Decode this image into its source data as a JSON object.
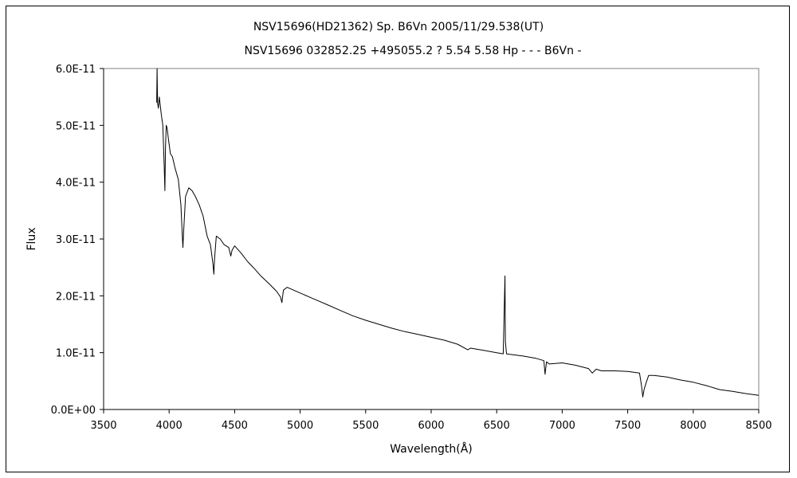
{
  "chart_data": {
    "type": "line",
    "title": "NSV15696(HD21362)    Sp. B6Vn    2005/11/29.538(UT)",
    "subtitle": "NSV15696 032852.25 +495055.2 ? 5.54 5.58 Hp - - - B6Vn -",
    "xlabel": "Wavelength(Å)",
    "ylabel": "Flux",
    "xlim": [
      3500,
      8500
    ],
    "ylim": [
      0,
      6e-11
    ],
    "x_ticks": [
      3500,
      4000,
      4500,
      5000,
      5500,
      6000,
      6500,
      7000,
      7500,
      8000,
      8500
    ],
    "x_tick_labels": [
      "3500",
      "4000",
      "4500",
      "5000",
      "5500",
      "6000",
      "6500",
      "7000",
      "7500",
      "8000",
      "8500"
    ],
    "y_ticks": [
      0,
      1e-11,
      2e-11,
      3e-11,
      4e-11,
      5e-11,
      6e-11
    ],
    "y_tick_labels": [
      "0.0E+00",
      "1.0E-11",
      "2.0E-11",
      "3.0E-11",
      "4.0E-11",
      "5.0E-11",
      "6.0E-11"
    ],
    "grid": false,
    "legend": "none",
    "series": [
      {
        "color": "#000000",
        "x": [
          3905,
          3908,
          3912,
          3918,
          3925,
          3930,
          3940,
          3952,
          3962,
          3968,
          3972,
          3978,
          3985,
          3995,
          4010,
          4025,
          4045,
          4070,
          4090,
          4100,
          4105,
          4110,
          4125,
          4150,
          4175,
          4200,
          4230,
          4260,
          4290,
          4315,
          4335,
          4341,
          4347,
          4360,
          4390,
          4420,
          4455,
          4471,
          4480,
          4500,
          4550,
          4600,
          4650,
          4700,
          4760,
          4820,
          4850,
          4861,
          4872,
          4900,
          4950,
          5000,
          5100,
          5200,
          5300,
          5400,
          5500,
          5600,
          5700,
          5800,
          5900,
          6000,
          6100,
          6200,
          6280,
          6300,
          6400,
          6500,
          6550,
          6563,
          6566,
          6575,
          6600,
          6700,
          6800,
          6860,
          6869,
          6880,
          6900,
          7000,
          7100,
          7200,
          7230,
          7260,
          7300,
          7400,
          7500,
          7590,
          7605,
          7615,
          7625,
          7645,
          7660,
          7700,
          7800,
          7900,
          8000,
          8100,
          8200,
          8300,
          8400,
          8500
        ],
        "values": [
          5.4e-11,
          6e-11,
          5.4e-11,
          5.3e-11,
          5.5e-11,
          5.4e-11,
          5.2e-11,
          5e-11,
          4.3e-11,
          3.85e-11,
          4.6e-11,
          5e-11,
          4.95e-11,
          4.75e-11,
          4.5e-11,
          4.45e-11,
          4.25e-11,
          4.05e-11,
          3.6e-11,
          3.1e-11,
          2.85e-11,
          3.1e-11,
          3.75e-11,
          3.9e-11,
          3.85e-11,
          3.75e-11,
          3.6e-11,
          3.4e-11,
          3.05e-11,
          2.9e-11,
          2.55e-11,
          2.38e-11,
          2.65e-11,
          3.05e-11,
          3e-11,
          2.9e-11,
          2.85e-11,
          2.7e-11,
          2.8e-11,
          2.88e-11,
          2.75e-11,
          2.6e-11,
          2.48e-11,
          2.35e-11,
          2.22e-11,
          2.08e-11,
          1.98e-11,
          1.88e-11,
          2.1e-11,
          2.15e-11,
          2.1e-11,
          2.05e-11,
          1.95e-11,
          1.85e-11,
          1.75e-11,
          1.65e-11,
          1.57e-11,
          1.5e-11,
          1.43e-11,
          1.37e-11,
          1.32e-11,
          1.27e-11,
          1.22e-11,
          1.15e-11,
          1.05e-11,
          1.08e-11,
          1.04e-11,
          1e-11,
          9.8e-12,
          2.35e-11,
          1.2e-11,
          9.8e-12,
          9.7e-12,
          9.4e-12,
          9e-12,
          8.6e-12,
          6.2e-12,
          8.4e-12,
          8e-12,
          8.2e-12,
          7.8e-12,
          7.2e-12,
          6.4e-12,
          7.1e-12,
          6.8e-12,
          6.8e-12,
          6.7e-12,
          6.4e-12,
          4.2e-12,
          2.2e-12,
          3.5e-12,
          5e-12,
          6e-12,
          6e-12,
          5.7e-12,
          5.2e-12,
          4.8e-12,
          4.2e-12,
          3.5e-12,
          3.2e-12,
          2.8e-12,
          2.5e-12
        ]
      }
    ]
  }
}
